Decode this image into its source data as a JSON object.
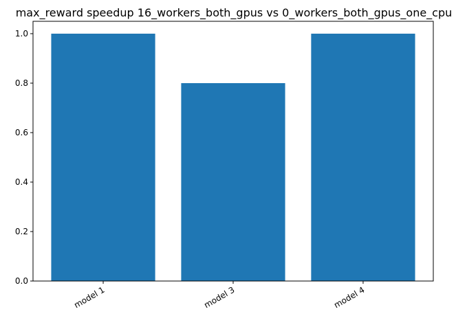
{
  "chart_data": {
    "type": "bar",
    "title": "max_reward speedup 16_workers_both_gpus vs 0_workers_both_gpus_one_cpu",
    "xlabel": "",
    "ylabel": "",
    "categories": [
      "model 1",
      "model 3",
      "model 4"
    ],
    "values": [
      1.0,
      0.8,
      1.0
    ],
    "ylim": [
      0,
      1.05
    ],
    "yticks": [
      "0.0",
      "0.2",
      "0.4",
      "0.6",
      "0.8",
      "1.0"
    ],
    "grid": false,
    "legend": "none",
    "bar_color": "#1f77b4"
  }
}
